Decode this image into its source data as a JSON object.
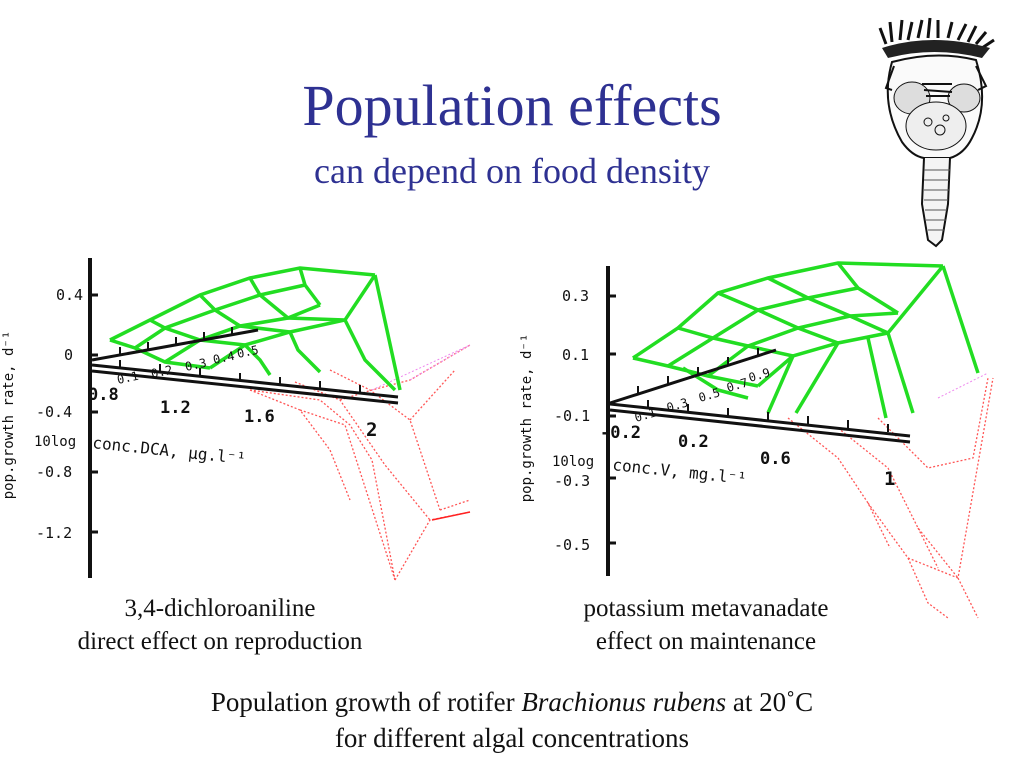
{
  "slide": {
    "title": "Population effects",
    "subtitle": "can depend on food density"
  },
  "chart_data": [
    {
      "type": "surface",
      "ylabel": "pop.growth rate, d⁻¹",
      "xlabel_prefix": "10log",
      "xlabel": "conc.DCA, µg.l⁻¹",
      "y_ticks": [
        "0.4",
        "0",
        "-0.4",
        "-0.8",
        "-1.2"
      ],
      "x_ticks": [
        "0.8",
        "1.2",
        "1.6",
        "2"
      ],
      "food_ticks": [
        "0.1",
        "0.2",
        "0.3",
        "0.4",
        "0.5"
      ],
      "caption_line1": "3,4-dichloroaniline",
      "caption_line2": "direct effect on reproduction",
      "colors": {
        "surface_positive": "#22dd22",
        "surface_negative": "#ff4444",
        "surface_faint": "#ee88ee"
      }
    },
    {
      "type": "surface",
      "ylabel": "pop.growth rate, d⁻¹",
      "xlabel_prefix": "10log",
      "xlabel": "conc.V, mg.l⁻¹",
      "y_ticks": [
        "0.3",
        "0.1",
        "-0.1",
        "-0.3",
        "-0.5"
      ],
      "x_ticks": [
        "-0.2",
        "0.2",
        "0.6",
        "1"
      ],
      "food_ticks": [
        "0.1",
        "0.3",
        "0.5",
        "0.7",
        "0.9"
      ],
      "caption_line1": "potassium metavanadate",
      "caption_line2": "effect on maintenance",
      "colors": {
        "surface_positive": "#22dd22",
        "surface_negative": "#ff4444",
        "surface_faint": "#ee88ee"
      }
    }
  ],
  "footer": {
    "line1_pre": "Population growth of rotifer ",
    "line1_species": "Brachionus rubens",
    "line1_post": " at 20˚C",
    "line2": "for different algal concentrations"
  }
}
